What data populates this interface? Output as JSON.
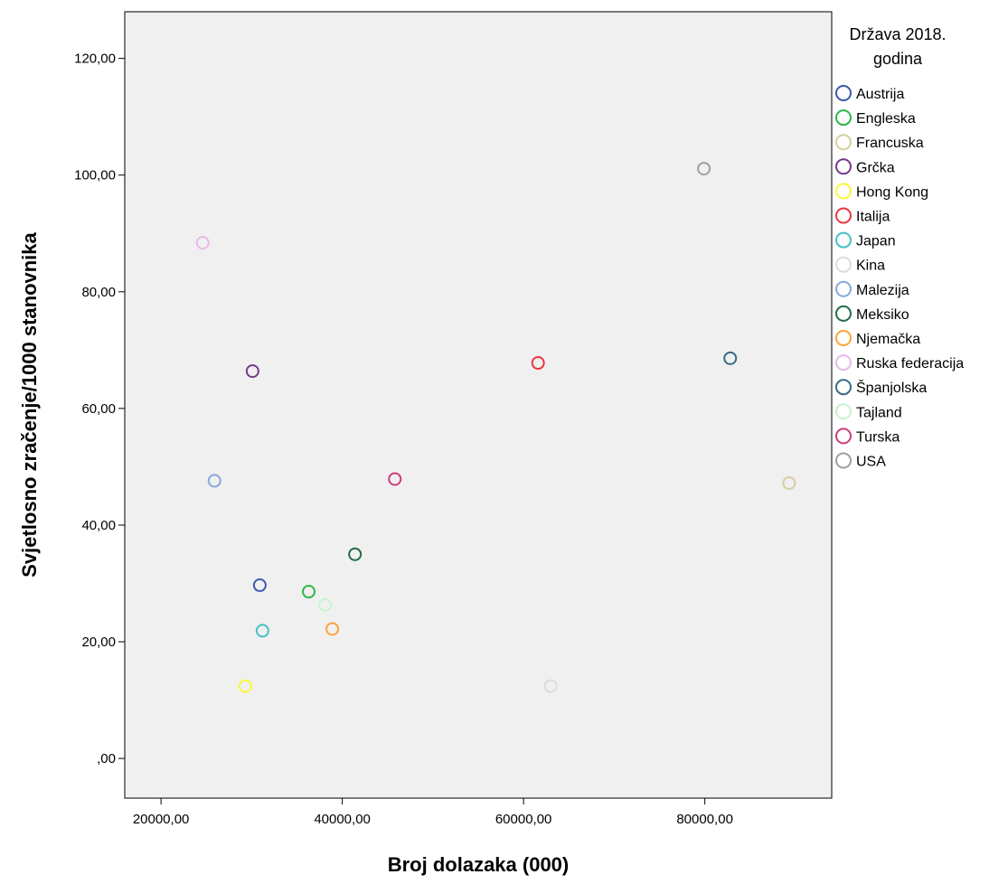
{
  "chart_data": {
    "type": "scatter",
    "xlabel": "Broj dolazaka (000)",
    "ylabel": "Svjetlosno zračenje/1000 stanovnika",
    "xlim": [
      16000,
      94000
    ],
    "ylim": [
      -6.8,
      128
    ],
    "x_ticks": [
      20000,
      40000,
      60000,
      80000
    ],
    "x_tick_labels": [
      "20000,00",
      "40000,00",
      "60000,00",
      "80000,00"
    ],
    "y_ticks": [
      0,
      20,
      40,
      60,
      80,
      100,
      120
    ],
    "y_tick_labels": [
      ",00",
      "20,00",
      "40,00",
      "60,00",
      "80,00",
      "100,00",
      "120,00"
    ],
    "grid": false,
    "plot_background": "#f0f0f0",
    "legend_title": "Država 2018. godina",
    "legend_title_lines": [
      "Država 2018.",
      "godina"
    ],
    "legend_placement": "right",
    "series": [
      {
        "name": "Austrija",
        "color": "#3e58ac",
        "points": [
          {
            "x": 30900,
            "y": 29.7
          }
        ]
      },
      {
        "name": "Engleska",
        "color": "#2eb848",
        "points": [
          {
            "x": 36300,
            "y": 28.6
          }
        ]
      },
      {
        "name": "Francuska",
        "color": "#d4cf9f",
        "points": [
          {
            "x": 89300,
            "y": 47.2
          }
        ]
      },
      {
        "name": "Grčka",
        "color": "#753a8c",
        "points": [
          {
            "x": 30100,
            "y": 66.4
          }
        ]
      },
      {
        "name": "Hong Kong",
        "color": "#fbf73c",
        "points": [
          {
            "x": 29300,
            "y": 12.4
          }
        ]
      },
      {
        "name": "Italija",
        "color": "#e8363f",
        "points": [
          {
            "x": 61600,
            "y": 67.8
          }
        ]
      },
      {
        "name": "Japan",
        "color": "#46c0c6",
        "points": [
          {
            "x": 31200,
            "y": 21.9
          }
        ]
      },
      {
        "name": "Kina",
        "color": "#dcdcdc",
        "points": [
          {
            "x": 63000,
            "y": 12.4
          }
        ]
      },
      {
        "name": "Malezija",
        "color": "#87a9db",
        "points": [
          {
            "x": 25900,
            "y": 47.6
          }
        ]
      },
      {
        "name": "Meksiko",
        "color": "#226c45",
        "points": [
          {
            "x": 41400,
            "y": 35.0
          }
        ]
      },
      {
        "name": "Njemačka",
        "color": "#f8a43c",
        "points": [
          {
            "x": 38900,
            "y": 22.2
          }
        ]
      },
      {
        "name": "Ruska federacija",
        "color": "#e6bbe9",
        "points": [
          {
            "x": 24600,
            "y": 88.4
          }
        ]
      },
      {
        "name": "Španjolska",
        "color": "#356c84",
        "points": [
          {
            "x": 82800,
            "y": 68.6
          }
        ]
      },
      {
        "name": "Tajland",
        "color": "#c8f3cd",
        "points": [
          {
            "x": 38100,
            "y": 26.3
          }
        ]
      },
      {
        "name": "Turska",
        "color": "#cc3e7c",
        "points": [
          {
            "x": 45800,
            "y": 47.9
          }
        ]
      },
      {
        "name": "USA",
        "color": "#a0a0a0",
        "points": [
          {
            "x": 79900,
            "y": 101.1
          }
        ]
      }
    ]
  }
}
